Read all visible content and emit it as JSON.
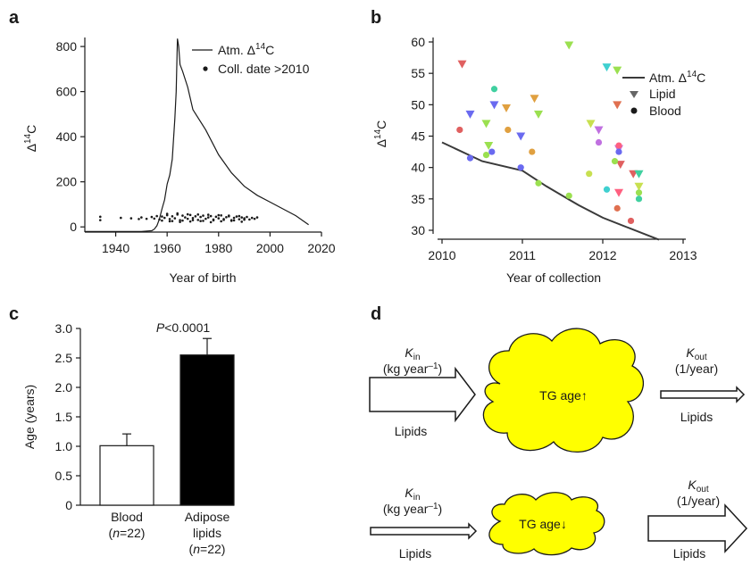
{
  "panels": {
    "a": "a",
    "b": "b",
    "c": "c",
    "d": "d"
  },
  "chart_data": [
    {
      "id": "a",
      "type": "line",
      "xlabel": "Year of birth",
      "ylabel_main": "Δ",
      "ylabel_sup": "14",
      "ylabel_end": "C",
      "xlim": [
        1928,
        2020
      ],
      "ylim": [
        -15,
        840
      ],
      "xticks": [
        "1940",
        "1960",
        "1980",
        "2000",
        "2020"
      ],
      "yticks": [
        "0",
        "200",
        "400",
        "600",
        "800"
      ],
      "legend": {
        "line_main": "Atm. Δ",
        "line_sup": "14",
        "line_end": "C",
        "points": "Coll. date >2010",
        "placement": "top-right"
      },
      "series": [
        {
          "kind": "line",
          "x": [
            1928,
            1950,
            1954,
            1955,
            1956,
            1957,
            1958,
            1959,
            1960,
            1961,
            1962,
            1963,
            1963.5,
            1964,
            1964.5,
            1965,
            1966,
            1968,
            1970,
            1975,
            1980,
            1985,
            1990,
            1995,
            2000,
            2005,
            2010,
            2015
          ],
          "y": [
            -20,
            -20,
            -17,
            -10,
            5,
            35,
            80,
            120,
            190,
            230,
            300,
            480,
            600,
            835,
            800,
            720,
            690,
            620,
            520,
            430,
            320,
            240,
            180,
            140,
            110,
            80,
            50,
            10
          ]
        },
        {
          "kind": "scatter",
          "x": [
            1934,
            1934,
            1942,
            1946,
            1949,
            1950,
            1952,
            1954,
            1955,
            1956,
            1957,
            1958,
            1959,
            1960,
            1961,
            1962,
            1963,
            1964,
            1965,
            1966,
            1967,
            1968,
            1969,
            1970,
            1971,
            1972,
            1973,
            1974,
            1975,
            1976,
            1977,
            1978,
            1979,
            1980,
            1981,
            1982,
            1983,
            1984,
            1985,
            1986,
            1987,
            1988,
            1989,
            1990,
            1991,
            1992,
            1993,
            1994,
            1995,
            1958,
            1960,
            1962,
            1964,
            1966,
            1968,
            1970,
            1972,
            1974,
            1976,
            1978,
            1980,
            1982,
            1984,
            1986,
            1988,
            1990,
            1961,
            1965,
            1969,
            1973,
            1977,
            1981,
            1985,
            1989
          ],
          "y": [
            45,
            30,
            40,
            38,
            35,
            42,
            36,
            44,
            37,
            48,
            33,
            46,
            40,
            52,
            35,
            47,
            38,
            55,
            30,
            50,
            42,
            36,
            53,
            39,
            47,
            31,
            44,
            50,
            36,
            42,
            48,
            33,
            45,
            38,
            51,
            35,
            43,
            47,
            30,
            40,
            46,
            34,
            42,
            38,
            44,
            33,
            40,
            36,
            42,
            28,
            58,
            26,
            60,
            28,
            56,
            30,
            55,
            27,
            54,
            29,
            52,
            31,
            50,
            29,
            48,
            32,
            25,
            22,
            24,
            26,
            21,
            25,
            27,
            23
          ]
        }
      ]
    },
    {
      "id": "b",
      "type": "scatter",
      "xlabel": "Year of collection",
      "ylabel_main": "Δ",
      "ylabel_sup": "14",
      "ylabel_end": "C",
      "xlim": [
        2010,
        2013
      ],
      "ylim": [
        29,
        61
      ],
      "xticks": [
        "2010",
        "2011",
        "2012",
        "2013"
      ],
      "yticks": [
        "30",
        "35",
        "40",
        "45",
        "50",
        "55",
        "60"
      ],
      "legend": {
        "line_main": "Atm. Δ",
        "line_sup": "14",
        "line_end": "C",
        "triangle": "Lipid",
        "circle": "Blood",
        "placement": "top-right"
      },
      "atm_line": {
        "x": [
          2010,
          2010.5,
          2011,
          2011.3,
          2011.7,
          2012,
          2012.3,
          2012.7
        ],
        "y": [
          44,
          41,
          39.5,
          37,
          34,
          32,
          30.5,
          28.5
        ]
      },
      "lipid": [
        {
          "x": 2010.25,
          "y": 56.5,
          "color": "#e06060"
        },
        {
          "x": 2010.35,
          "y": 48.5,
          "color": "#6a6af0"
        },
        {
          "x": 2010.55,
          "y": 47,
          "color": "#9be050"
        },
        {
          "x": 2010.58,
          "y": 43.5,
          "color": "#9be050"
        },
        {
          "x": 2010.65,
          "y": 50,
          "color": "#6a6af0"
        },
        {
          "x": 2010.8,
          "y": 49.5,
          "color": "#e0a040"
        },
        {
          "x": 2010.98,
          "y": 45,
          "color": "#6a6af0"
        },
        {
          "x": 2011.15,
          "y": 51,
          "color": "#e0a040"
        },
        {
          "x": 2011.2,
          "y": 48.5,
          "color": "#9be050"
        },
        {
          "x": 2011.58,
          "y": 59.5,
          "color": "#9be050"
        },
        {
          "x": 2011.85,
          "y": 47,
          "color": "#c8e050"
        },
        {
          "x": 2011.95,
          "y": 46,
          "color": "#c070e0"
        },
        {
          "x": 2012.05,
          "y": 56,
          "color": "#40d0d0"
        },
        {
          "x": 2012.18,
          "y": 55.5,
          "color": "#9be050"
        },
        {
          "x": 2012.18,
          "y": 50,
          "color": "#e07050"
        },
        {
          "x": 2012.2,
          "y": 43,
          "color": "#c070e0"
        },
        {
          "x": 2012.22,
          "y": 40.5,
          "color": "#e06060"
        },
        {
          "x": 2012.2,
          "y": 36,
          "color": "#ff6080"
        },
        {
          "x": 2012.38,
          "y": 39,
          "color": "#e06060"
        },
        {
          "x": 2012.45,
          "y": 39,
          "color": "#40d0a0"
        },
        {
          "x": 2012.45,
          "y": 37,
          "color": "#c8e050"
        }
      ],
      "blood": [
        {
          "x": 2010.22,
          "y": 46,
          "color": "#e06060"
        },
        {
          "x": 2010.35,
          "y": 41.5,
          "color": "#6a6af0"
        },
        {
          "x": 2010.55,
          "y": 42,
          "color": "#9be050"
        },
        {
          "x": 2010.62,
          "y": 42.5,
          "color": "#6a6af0"
        },
        {
          "x": 2010.65,
          "y": 52.5,
          "color": "#40d0a0"
        },
        {
          "x": 2010.82,
          "y": 46,
          "color": "#e0a040"
        },
        {
          "x": 2010.98,
          "y": 40,
          "color": "#6a6af0"
        },
        {
          "x": 2011.12,
          "y": 42.5,
          "color": "#e0a040"
        },
        {
          "x": 2011.2,
          "y": 37.5,
          "color": "#9be050"
        },
        {
          "x": 2011.58,
          "y": 35.5,
          "color": "#9be050"
        },
        {
          "x": 2011.83,
          "y": 39,
          "color": "#c8e050"
        },
        {
          "x": 2011.95,
          "y": 44,
          "color": "#c070e0"
        },
        {
          "x": 2012.05,
          "y": 36.5,
          "color": "#40d0d0"
        },
        {
          "x": 2012.15,
          "y": 41,
          "color": "#9be050"
        },
        {
          "x": 2012.18,
          "y": 33.5,
          "color": "#e07050"
        },
        {
          "x": 2012.2,
          "y": 43.5,
          "color": "#ff6080"
        },
        {
          "x": 2012.2,
          "y": 42.5,
          "color": "#6a6af0"
        },
        {
          "x": 2012.35,
          "y": 31.5,
          "color": "#e06060"
        },
        {
          "x": 2012.45,
          "y": 36,
          "color": "#9be050"
        },
        {
          "x": 2012.45,
          "y": 35,
          "color": "#40d0a0"
        }
      ]
    },
    {
      "id": "c",
      "type": "bar",
      "ylabel": "Age (years)",
      "ylim": [
        0,
        3.0
      ],
      "yticks": [
        "0",
        "0.5",
        "1.0",
        "1.5",
        "2.0",
        "2.5",
        "3.0"
      ],
      "annotation_p": "P",
      "annotation_rest": "<0.0001",
      "categories": [
        {
          "line1": "Blood",
          "n_open": "(",
          "n_italic": "n",
          "n_rest": "=22)"
        },
        {
          "line1": "Adipose",
          "line2": "lipids",
          "n_open": "(",
          "n_italic": "n",
          "n_rest": "=22)"
        }
      ],
      "values": [
        1.01,
        2.55
      ],
      "errors": [
        0.2,
        0.28
      ],
      "colors": [
        "#ffffff",
        "#000000"
      ]
    }
  ],
  "diagram_d": {
    "top": {
      "kin_k": "K",
      "kin_sub": "in",
      "kin_unit": "(kg year",
      "kin_unit_sup": "–1",
      "kin_unit_close": ")",
      "in_label": "Lipids",
      "cloud_text": "TG age↑",
      "kout_k": "K",
      "kout_sub": "out",
      "kout_unit": "(1/year)",
      "out_label": "Lipids"
    },
    "bottom": {
      "kin_k": "K",
      "kin_sub": "in",
      "kin_unit": "(kg year",
      "kin_unit_sup": "–1",
      "kin_unit_close": ")",
      "in_label": "Lipids",
      "cloud_text": "TG age↓",
      "kout_k": "K",
      "kout_sub": "out",
      "kout_unit": "(1/year)",
      "out_label": "Lipids"
    },
    "cloud_color": "#ffff00"
  }
}
